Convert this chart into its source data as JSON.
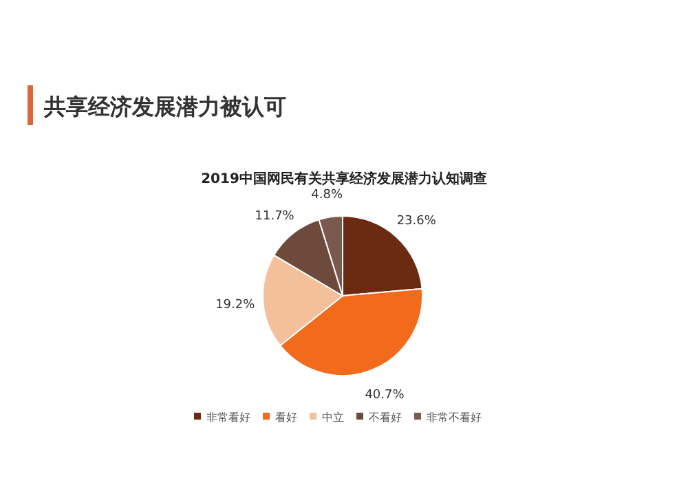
{
  "chart_data": {
    "type": "pie",
    "title": "共享经济发展潜力被认可",
    "subtitle": "2019中国网民有关共享经济发展潜力认知调查",
    "categories": [
      "非常看好",
      "看好",
      "中立",
      "不看好",
      "非常不看好"
    ],
    "values": [
      23.6,
      40.7,
      19.2,
      11.7,
      4.8
    ],
    "value_labels": [
      "23.6%",
      "40.7%",
      "19.2%",
      "11.7%",
      "4.8%"
    ],
    "colors": [
      "#6b2a12",
      "#f26a1b",
      "#f4c09c",
      "#6e4a3c",
      "#7a5a50"
    ],
    "legend": "bottom"
  }
}
